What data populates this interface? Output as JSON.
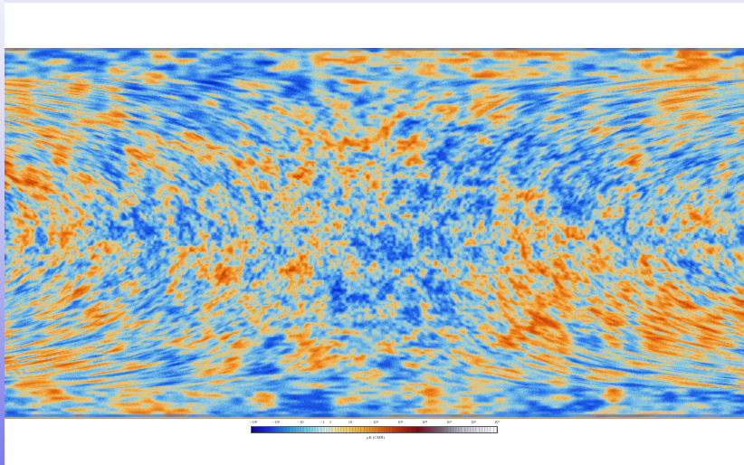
{
  "map": {
    "projection": "equirectangular",
    "colors": {
      "cold": "#0a32e6",
      "cool": "#3c8cf0",
      "mid": "#78c8e6",
      "warm": "#f0b43c",
      "hot": "#e6640a"
    }
  },
  "colorbar": {
    "ticks": [
      "−10³",
      "−10²",
      "−10",
      "−1",
      "1",
      "10",
      "10²",
      "10³",
      "10⁴",
      "10⁵",
      "10⁶",
      "10⁷"
    ],
    "label": "μK (CMB)"
  }
}
